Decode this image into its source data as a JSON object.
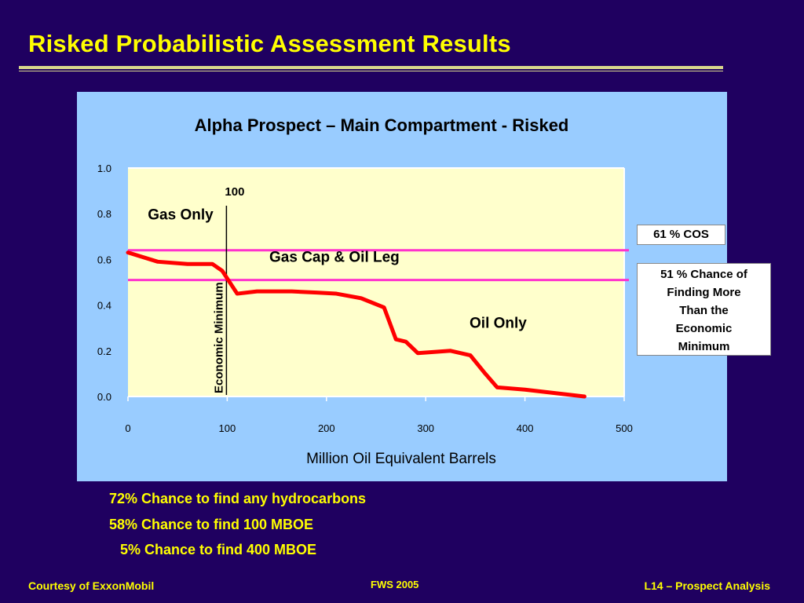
{
  "slide": {
    "title": "Risked Probabilistic Assessment Results",
    "summary": [
      "72% Chance to find any hydrocarbons",
      "58% Chance to find 100 MBOE",
      "5% Chance to find 400 MBOE"
    ],
    "footer": {
      "left": "Courtesy of ExxonMobil",
      "center": "FWS 2005",
      "right": "L14 – Prospect Analysis"
    },
    "callouts": {
      "cos": "61 %  COS",
      "chance": "51 % Chance of\nFinding More\nThan the\nEconomic\nMinimum"
    }
  },
  "chart_data": {
    "type": "line",
    "title": "Alpha Prospect – Main Compartment - Risked",
    "xlabel": "Million Oil Equivalent Barrels",
    "ylabel": "",
    "xlim": [
      0,
      500
    ],
    "ylim": [
      0,
      1.0
    ],
    "x_ticks": [
      0,
      100,
      200,
      300,
      400,
      500
    ],
    "y_ticks": [
      "0.0",
      "0.2",
      "0.4",
      "0.6",
      "0.8",
      "1.0"
    ],
    "grid": false,
    "colors": {
      "curve": "#ff0000",
      "reference_lines": "#ff33cc",
      "plot_background": "#ffffcc",
      "panel_background": "#99ccff"
    },
    "series": [
      {
        "x": [
          0,
          30,
          60,
          85,
          95,
          110,
          130,
          165,
          190,
          210,
          235,
          258,
          270,
          280,
          292,
          325,
          345,
          360,
          372,
          400,
          430,
          460
        ],
        "values": [
          0.63,
          0.59,
          0.58,
          0.58,
          0.55,
          0.45,
          0.46,
          0.46,
          0.455,
          0.45,
          0.43,
          0.39,
          0.25,
          0.24,
          0.19,
          0.2,
          0.18,
          0.1,
          0.04,
          0.03,
          0.015,
          0.0
        ]
      }
    ],
    "reference_lines": [
      {
        "y": 0.64
      },
      {
        "y": 0.51
      }
    ],
    "vertical_marker": {
      "x": 100,
      "label": "Economic Minimum",
      "top_label": "100"
    },
    "annotations": [
      {
        "text": "Gas Only",
        "x": 53,
        "y": 0.775
      },
      {
        "text": "Gas Cap & Oil Leg",
        "x": 208,
        "y": 0.59
      },
      {
        "text": "Oil Only",
        "x": 373,
        "y": 0.3
      }
    ]
  }
}
